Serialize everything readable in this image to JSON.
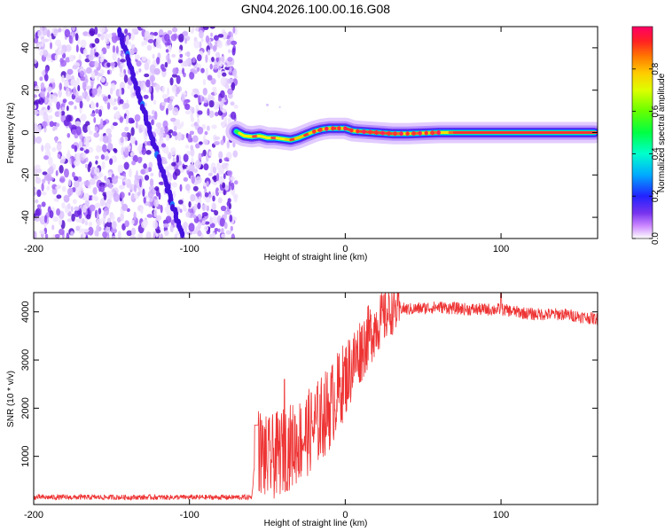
{
  "title": "GN04.2026.100.00.16.G08",
  "chart_data": [
    {
      "type": "heatmap",
      "xlabel": "Height of straight line (km)",
      "ylabel": "Frequency (Hz)",
      "xlim": [
        -200,
        162
      ],
      "ylim": [
        -50,
        50
      ],
      "xticks": [
        -200,
        -100,
        0,
        100
      ],
      "yticks": [
        -40,
        -20,
        0,
        20,
        40
      ],
      "colorbar": {
        "label": "Normalized spectral amplitude",
        "range": [
          0,
          1
        ],
        "ticks": [
          0.0,
          0.2,
          0.4,
          0.6,
          0.8
        ],
        "tick_labels": [
          "0.0",
          "0.2",
          "0.4",
          "0.6",
          "0.8"
        ]
      },
      "noise_region_x": [
        -200,
        -70
      ],
      "diagonal_track": {
        "x": [
          -145,
          -105
        ],
        "y": [
          48,
          -48
        ]
      },
      "signal_track": {
        "x": [
          -70,
          -65,
          -60,
          -55,
          -50,
          -45,
          -40,
          -35,
          -30,
          -25,
          -20,
          -15,
          -10,
          -5,
          0,
          5,
          10,
          20,
          30,
          40,
          60,
          80,
          100,
          120,
          140,
          160
        ],
        "y": [
          0.5,
          -1.5,
          -2.0,
          -1.5,
          -2.5,
          -2.5,
          -3.0,
          -3.5,
          -2.5,
          -1.0,
          0.5,
          1.5,
          2.0,
          2.0,
          2.0,
          0.8,
          0.5,
          0.0,
          -0.5,
          -0.5,
          0.0,
          0.0,
          0.0,
          0.0,
          0.0,
          0.0
        ]
      }
    },
    {
      "type": "line",
      "xlabel": "Height of straight line (km)",
      "ylabel": "SNR (10 * v/v)",
      "xlim": [
        -200,
        162
      ],
      "ylim": [
        0,
        4400
      ],
      "xticks": [
        -200,
        -100,
        0,
        100
      ],
      "yticks": [
        1000,
        2000,
        3000,
        4000
      ],
      "color": "#ee3333",
      "envelope": {
        "x": [
          -200,
          -60,
          -57,
          -50,
          -40,
          -30,
          -20,
          -10,
          0,
          10,
          20,
          30,
          40,
          60,
          80,
          100,
          120,
          140,
          162
        ],
        "y": [
          150,
          150,
          1300,
          1000,
          1200,
          1400,
          1700,
          2100,
          2700,
          3300,
          3800,
          4100,
          4050,
          4100,
          4050,
          4050,
          3950,
          3950,
          3850
        ]
      }
    }
  ]
}
